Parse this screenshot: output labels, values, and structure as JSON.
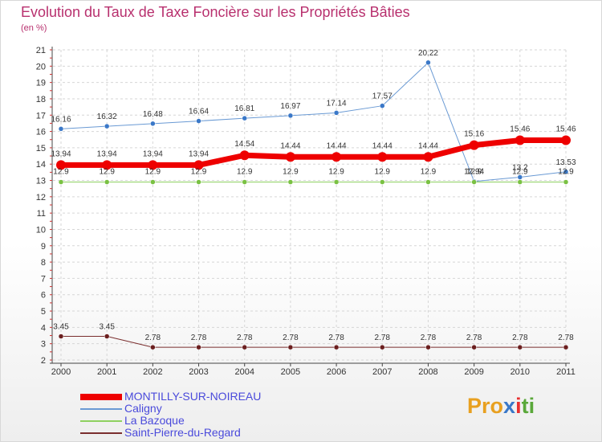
{
  "header": {
    "title": "Evolution du Taux de Taxe Foncière sur les Propriétés Bâties",
    "subtitle": "(en %)"
  },
  "logo": {
    "text": "Proxiti",
    "letters": [
      "P",
      "r",
      "o",
      "x",
      "i",
      "t",
      "i"
    ],
    "colors": [
      "#e8a020",
      "#e8a020",
      "#e8a020",
      "#3a78c8",
      "#e83030",
      "#5aa83a",
      "#5aa83a"
    ]
  },
  "chart_data": {
    "type": "line",
    "title": "Evolution du Taux de Taxe Foncière sur les Propriétés Bâties",
    "ylabel": "(en %)",
    "xlabel": "",
    "x": [
      "2000",
      "2001",
      "2002",
      "2003",
      "2004",
      "2005",
      "2006",
      "2007",
      "2008",
      "2009",
      "2010",
      "2011"
    ],
    "ylim": [
      2,
      21
    ],
    "yticks": [
      2,
      3,
      4,
      5,
      6,
      7,
      8,
      9,
      10,
      11,
      12,
      13,
      14,
      15,
      16,
      17,
      18,
      19,
      20,
      21
    ],
    "legend_position": "bottom-left",
    "series": [
      {
        "name": "Caligny",
        "color": "#6a9ad4",
        "marker": "#3a78c8",
        "width": 1,
        "values": [
          16.16,
          16.32,
          16.48,
          16.64,
          16.81,
          16.97,
          17.14,
          17.57,
          20.22,
          12.94,
          13.2,
          13.53
        ],
        "labels": [
          "16.16",
          "16.32",
          "16.48",
          "16.64",
          "16.81",
          "16.97",
          "17.14",
          "17.57",
          "20.22",
          "12.94",
          "13.2",
          "13.53"
        ]
      },
      {
        "name": "La Bazoque",
        "color": "#8ed060",
        "marker": "#7ac143",
        "width": 1,
        "values": [
          12.9,
          12.9,
          12.9,
          12.9,
          12.9,
          12.9,
          12.9,
          12.9,
          12.9,
          12.9,
          12.9,
          12.9
        ],
        "labels": [
          "12.9",
          "12.9",
          "12.9",
          "12.9",
          "12.9",
          "12.9",
          "12.9",
          "12.9",
          "12.9",
          "12.9",
          "12.9",
          "12.9"
        ]
      },
      {
        "name": "Saint-Pierre-du-Regard",
        "color": "#7a2e2e",
        "marker": "#6b1f1f",
        "width": 1,
        "values": [
          3.45,
          3.45,
          2.78,
          2.78,
          2.78,
          2.78,
          2.78,
          2.78,
          2.78,
          2.78,
          2.78,
          2.78
        ],
        "labels": [
          "3.45",
          "3.45",
          "2.78",
          "2.78",
          "2.78",
          "2.78",
          "2.78",
          "2.78",
          "2.78",
          "2.78",
          "2.78",
          "2.78"
        ]
      },
      {
        "name": "MONTILLY-SUR-NOIREAU",
        "color": "#ee0000",
        "marker": "#ee0000",
        "width": 7,
        "values": [
          13.94,
          13.94,
          13.94,
          13.94,
          14.54,
          14.44,
          14.44,
          14.44,
          14.44,
          15.16,
          15.46,
          15.46
        ],
        "labels": [
          "13.94",
          "13.94",
          "13.94",
          "13.94",
          "14.54",
          "14.44",
          "14.44",
          "14.44",
          "14.44",
          "15.16",
          "15.46",
          "15.46"
        ]
      }
    ],
    "legend": [
      "MONTILLY-SUR-NOIREAU",
      "Caligny",
      "La Bazoque",
      "Saint-Pierre-du-Regard"
    ]
  }
}
